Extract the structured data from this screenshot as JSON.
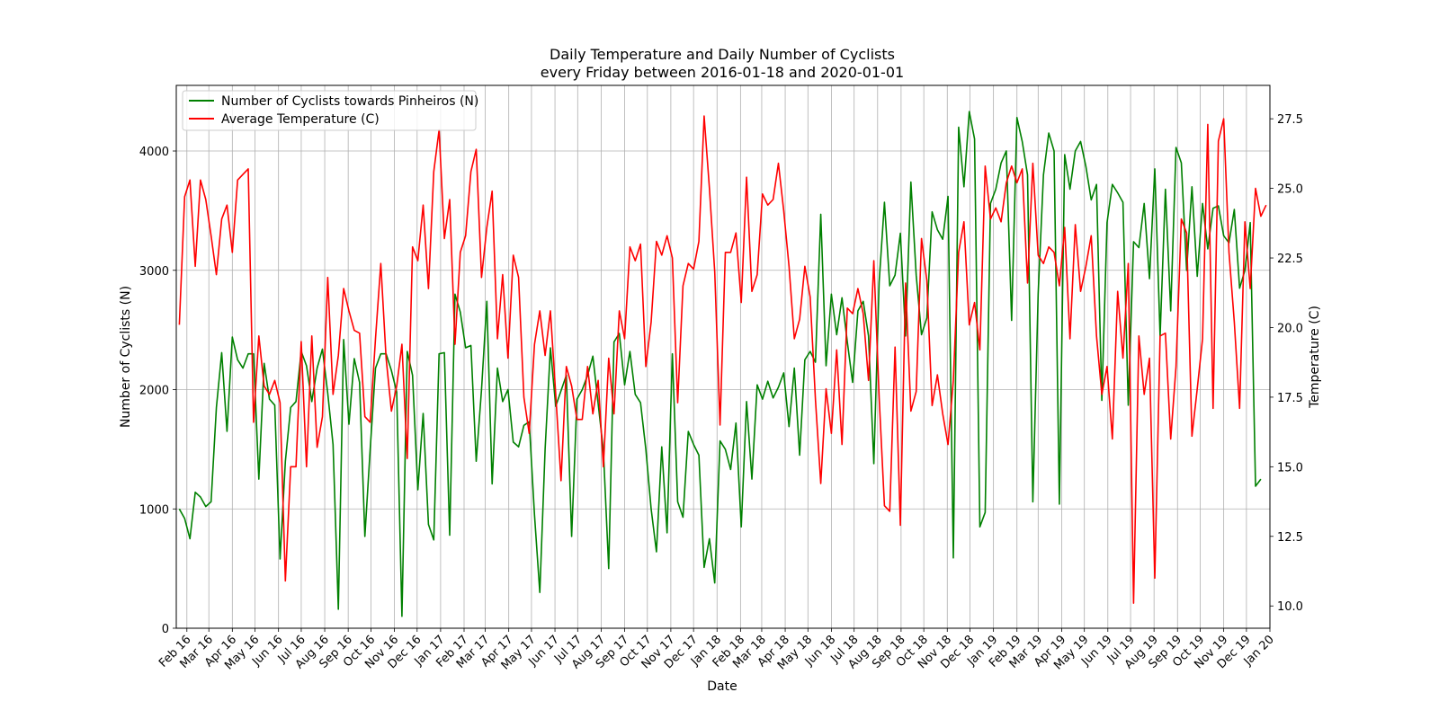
{
  "chart_data": {
    "type": "line",
    "title_line1": "Daily Temperature and Daily Number of Cyclists",
    "title_line2": "every Friday between 2016-01-18 and 2020-01-01",
    "xlabel": "Date",
    "ylabel_left": "Number of Cyclists (N)",
    "ylabel_right": "Temperature (C)",
    "grid": true,
    "legend_position": "top-left",
    "x_range": [
      "2016-01-18",
      "2020-01-01"
    ],
    "ylim_left": [
      0,
      4550
    ],
    "ylim_right": [
      9.2,
      28.7
    ],
    "x_ticks": [
      {
        "date": "2016-02-01",
        "label": "Feb 16"
      },
      {
        "date": "2016-03-01",
        "label": "Mar 16"
      },
      {
        "date": "2016-04-01",
        "label": "Apr 16"
      },
      {
        "date": "2016-05-01",
        "label": "May 16"
      },
      {
        "date": "2016-06-01",
        "label": "Jun 16"
      },
      {
        "date": "2016-07-01",
        "label": "Jul 16"
      },
      {
        "date": "2016-08-01",
        "label": "Aug 16"
      },
      {
        "date": "2016-09-01",
        "label": "Sep 16"
      },
      {
        "date": "2016-10-01",
        "label": "Oct 16"
      },
      {
        "date": "2016-11-01",
        "label": "Nov 16"
      },
      {
        "date": "2016-12-01",
        "label": "Dec 16"
      },
      {
        "date": "2017-01-01",
        "label": "Jan 17"
      },
      {
        "date": "2017-02-01",
        "label": "Feb 17"
      },
      {
        "date": "2017-03-01",
        "label": "Mar 17"
      },
      {
        "date": "2017-04-01",
        "label": "Apr 17"
      },
      {
        "date": "2017-05-01",
        "label": "May 17"
      },
      {
        "date": "2017-06-01",
        "label": "Jun 17"
      },
      {
        "date": "2017-07-01",
        "label": "Jul 17"
      },
      {
        "date": "2017-08-01",
        "label": "Aug 17"
      },
      {
        "date": "2017-09-01",
        "label": "Sep 17"
      },
      {
        "date": "2017-10-01",
        "label": "Oct 17"
      },
      {
        "date": "2017-11-01",
        "label": "Nov 17"
      },
      {
        "date": "2017-12-01",
        "label": "Dec 17"
      },
      {
        "date": "2018-01-01",
        "label": "Jan 18"
      },
      {
        "date": "2018-02-01",
        "label": "Feb 18"
      },
      {
        "date": "2018-03-01",
        "label": "Mar 18"
      },
      {
        "date": "2018-04-01",
        "label": "Apr 18"
      },
      {
        "date": "2018-05-01",
        "label": "May 18"
      },
      {
        "date": "2018-06-01",
        "label": "Jun 18"
      },
      {
        "date": "2018-07-01",
        "label": "Jul 18"
      },
      {
        "date": "2018-08-01",
        "label": "Aug 18"
      },
      {
        "date": "2018-09-01",
        "label": "Sep 18"
      },
      {
        "date": "2018-10-01",
        "label": "Oct 18"
      },
      {
        "date": "2018-11-01",
        "label": "Nov 18"
      },
      {
        "date": "2018-12-01",
        "label": "Dec 18"
      },
      {
        "date": "2019-01-01",
        "label": "Jan 19"
      },
      {
        "date": "2019-02-01",
        "label": "Feb 19"
      },
      {
        "date": "2019-03-01",
        "label": "Mar 19"
      },
      {
        "date": "2019-04-01",
        "label": "Apr 19"
      },
      {
        "date": "2019-05-01",
        "label": "May 19"
      },
      {
        "date": "2019-06-01",
        "label": "Jun 19"
      },
      {
        "date": "2019-07-01",
        "label": "Jul 19"
      },
      {
        "date": "2019-08-01",
        "label": "Aug 19"
      },
      {
        "date": "2019-09-01",
        "label": "Sep 19"
      },
      {
        "date": "2019-10-01",
        "label": "Oct 19"
      },
      {
        "date": "2019-11-01",
        "label": "Nov 19"
      },
      {
        "date": "2019-12-01",
        "label": "Dec 19"
      },
      {
        "date": "2020-01-01",
        "label": "Jan 20"
      }
    ],
    "y_ticks_left": [
      0,
      1000,
      2000,
      3000,
      4000
    ],
    "y_ticks_right": [
      "10.0",
      "12.5",
      "15.0",
      "17.5",
      "20.0",
      "22.5",
      "25.0",
      "27.5"
    ],
    "series": [
      {
        "name": "Number of Cyclists towards Pinheiros (N)",
        "color": "#008000",
        "axis": "left",
        "start_date": "2016-01-22",
        "step_days": 7,
        "values": [
          1000,
          920,
          750,
          1140,
          1100,
          1020,
          1060,
          1850,
          2310,
          1650,
          2440,
          2250,
          2180,
          2300,
          2300,
          1250,
          2220,
          1920,
          1870,
          580,
          1400,
          1850,
          1900,
          2320,
          2200,
          1900,
          2180,
          2340,
          1970,
          1540,
          160,
          2420,
          1710,
          2260,
          2060,
          770,
          1500,
          2180,
          2300,
          2300,
          2160,
          1980,
          100,
          2320,
          2120,
          1160,
          1800,
          870,
          740,
          2300,
          2310,
          780,
          2800,
          2650,
          2350,
          2370,
          1400,
          2000,
          2740,
          1210,
          2180,
          1900,
          2000,
          1560,
          1520,
          1700,
          1730,
          950,
          300,
          1500,
          2350,
          1860,
          1990,
          2120,
          770,
          1920,
          2000,
          2120,
          2280,
          1880,
          1490,
          500,
          2400,
          2470,
          2040,
          2320,
          1960,
          1890,
          1500,
          1000,
          640,
          1520,
          800,
          2300,
          1060,
          930,
          1650,
          1540,
          1450,
          510,
          750,
          380,
          1570,
          1500,
          1330,
          1720,
          850,
          1900,
          1250,
          2040,
          1920,
          2070,
          1930,
          2020,
          2140,
          1690,
          2180,
          1450,
          2250,
          2320,
          2230,
          3470,
          2200,
          2800,
          2460,
          2770,
          2400,
          2060,
          2660,
          2740,
          2450,
          1380,
          2900,
          3570,
          2870,
          2960,
          3310,
          2450,
          3740,
          2960,
          2460,
          2600,
          3490,
          3340,
          3260,
          3620,
          590,
          4200,
          3700,
          4330,
          4100,
          850,
          970,
          3560,
          3680,
          3900,
          4000,
          2580,
          4280,
          4080,
          3800,
          1060,
          2800,
          3800,
          4150,
          4000,
          1040,
          3970,
          3680,
          4000,
          4080,
          3870,
          3590,
          3720,
          1910,
          3400,
          3720,
          3650,
          3570,
          1870,
          3240,
          3190,
          3560,
          2930,
          3850,
          2450,
          3680,
          2660,
          4030,
          3900,
          3000,
          3700,
          2950,
          3560,
          3180,
          3520,
          3540,
          3290,
          3230,
          3510,
          2850,
          3000,
          3400,
          1190,
          1250
        ]
      },
      {
        "name": "Average Temperature (C)",
        "color": "#ff0000",
        "axis": "right",
        "start_date": "2016-01-22",
        "step_days": 7,
        "values": [
          20.1,
          24.7,
          25.3,
          22.2,
          25.3,
          24.6,
          23.3,
          21.9,
          23.9,
          24.4,
          22.7,
          25.3,
          25.5,
          25.7,
          16.6,
          19.7,
          17.9,
          17.6,
          18.1,
          17.3,
          10.9,
          15.0,
          15.0,
          19.5,
          15.0,
          19.7,
          15.7,
          16.8,
          21.8,
          17.6,
          19.0,
          21.4,
          20.6,
          19.9,
          19.8,
          16.8,
          16.6,
          19.6,
          22.3,
          18.9,
          17.0,
          17.9,
          19.4,
          15.3,
          22.9,
          22.4,
          24.4,
          21.4,
          25.6,
          27.1,
          23.2,
          24.6,
          19.4,
          22.7,
          23.3,
          25.6,
          26.4,
          21.8,
          23.6,
          24.9,
          19.6,
          21.9,
          18.9,
          22.6,
          21.8,
          17.5,
          16.2,
          19.4,
          20.6,
          19.0,
          20.6,
          17.6,
          14.5,
          18.6,
          17.9,
          16.7,
          16.7,
          18.6,
          16.9,
          18.1,
          15.0,
          18.9,
          16.9,
          20.6,
          19.6,
          22.9,
          22.4,
          23.0,
          18.6,
          20.2,
          23.1,
          22.6,
          23.3,
          22.5,
          17.3,
          21.5,
          22.3,
          22.1,
          23.1,
          27.6,
          25.0,
          22.0,
          16.5,
          22.7,
          22.7,
          23.4,
          20.9,
          25.4,
          21.3,
          21.9,
          24.8,
          24.4,
          24.6,
          25.9,
          24.2,
          22.2,
          19.6,
          20.3,
          22.2,
          21.1,
          17.4,
          14.4,
          17.8,
          16.2,
          19.2,
          15.8,
          20.7,
          20.5,
          21.4,
          20.5,
          18.1,
          22.4,
          17.5,
          13.6,
          13.4,
          19.3,
          12.9,
          21.6,
          17.0,
          17.7,
          23.2,
          21.7,
          17.2,
          18.3,
          16.9,
          15.8,
          18.1,
          22.7,
          23.8,
          20.1,
          20.9,
          19.2,
          25.8,
          23.9,
          24.3,
          23.8,
          25.2,
          25.8,
          25.2,
          25.7,
          21.6,
          25.9,
          22.6,
          22.3,
          22.9,
          22.7,
          21.5,
          23.6,
          19.6,
          23.7,
          21.3,
          22.2,
          23.3,
          19.7,
          17.6,
          18.6,
          16.0,
          21.3,
          18.9,
          22.3,
          10.1,
          19.7,
          17.6,
          18.9,
          11.0,
          19.7,
          19.8,
          16.0,
          18.6,
          23.9,
          23.4,
          16.1,
          17.8,
          19.6,
          27.3,
          17.1,
          26.7,
          27.5,
          22.7,
          20.2,
          17.1,
          23.8,
          21.4,
          25.0,
          24.0,
          24.4
        ]
      }
    ]
  }
}
